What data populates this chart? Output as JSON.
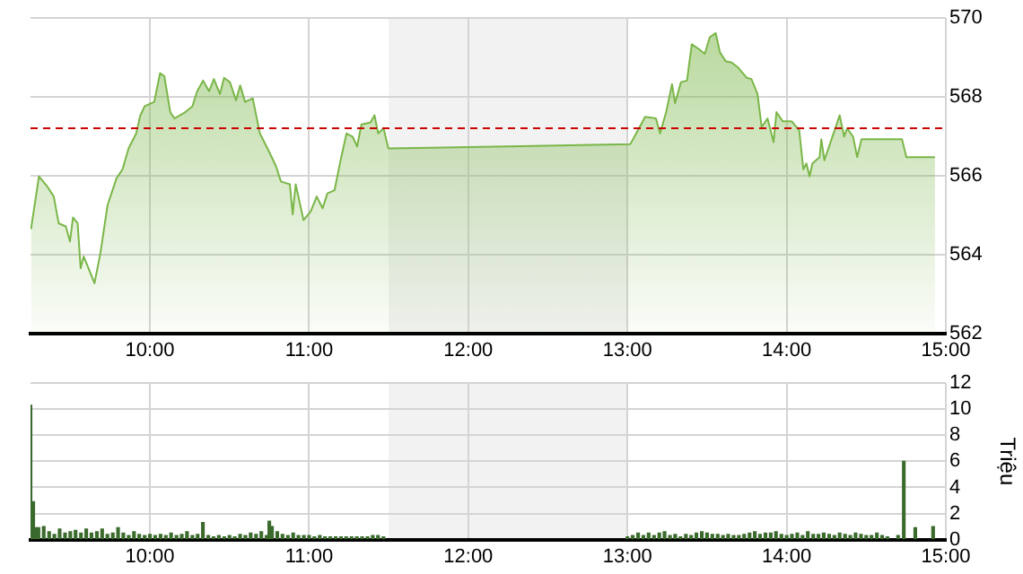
{
  "chart_data": [
    {
      "type": "area",
      "series": [
        {
          "color": "#7ab648",
          "x": [
            9.253,
            9.303,
            9.359,
            9.396,
            9.427,
            9.472,
            9.498,
            9.517,
            9.546,
            9.565,
            9.584,
            9.621,
            9.652,
            9.689,
            9.734,
            9.79,
            9.828,
            9.866,
            9.914,
            9.94,
            9.967,
            10.027,
            10.064,
            10.091,
            10.128,
            10.154,
            10.222,
            10.267,
            10.297,
            10.334,
            10.372,
            10.402,
            10.44,
            10.466,
            10.503,
            10.541,
            10.567,
            10.598,
            10.646,
            10.691,
            10.747,
            10.792,
            10.823,
            10.879,
            10.897,
            10.916,
            10.965,
            11.01,
            11.048,
            11.085,
            11.115,
            11.16,
            11.198,
            11.235,
            11.273,
            11.302,
            11.329,
            11.386,
            11.411,
            11.434,
            11.468,
            11.498,
            12.25,
            13.018,
            13.055,
            13.111,
            13.179,
            13.205,
            13.243,
            13.28,
            13.299,
            13.336,
            13.374,
            13.404,
            13.449,
            13.486,
            13.517,
            13.554,
            13.581,
            13.618,
            13.655,
            13.693,
            13.75,
            13.779,
            13.817,
            13.843,
            13.88,
            13.918,
            13.936,
            13.975,
            14.031,
            14.079,
            14.105,
            14.124,
            14.144,
            14.162,
            14.207,
            14.218,
            14.237,
            14.282,
            14.333,
            14.361,
            14.38,
            14.417,
            14.443,
            14.47,
            14.725,
            14.752,
            14.932
          ],
          "values": [
            564.64,
            565.98,
            565.7,
            565.47,
            564.79,
            564.71,
            564.33,
            564.94,
            564.79,
            563.65,
            563.95,
            563.58,
            563.27,
            564.03,
            565.25,
            565.93,
            566.16,
            566.69,
            567.07,
            567.53,
            567.76,
            567.87,
            568.6,
            568.52,
            567.61,
            567.45,
            567.61,
            567.76,
            568.14,
            568.41,
            568.14,
            568.45,
            568.07,
            568.48,
            568.37,
            567.91,
            568.29,
            567.87,
            567.96,
            567.07,
            566.62,
            566.24,
            565.85,
            565.78,
            565.02,
            565.78,
            564.87,
            565.09,
            565.47,
            565.17,
            565.55,
            565.63,
            566.39,
            567.07,
            566.99,
            566.74,
            567.3,
            567.35,
            567.53,
            567.07,
            567.2,
            566.69,
            566.74,
            566.8,
            567.07,
            567.49,
            567.45,
            567.07,
            567.61,
            568.32,
            567.84,
            568.37,
            568.41,
            569.33,
            569.21,
            569.09,
            569.51,
            569.62,
            569.13,
            568.9,
            568.87,
            568.75,
            568.48,
            568.45,
            568.07,
            567.23,
            567.45,
            566.85,
            567.61,
            567.38,
            567.38,
            567.15,
            566.16,
            566.31,
            565.98,
            566.31,
            566.47,
            566.92,
            566.39,
            566.92,
            567.53,
            566.99,
            567.2,
            566.99,
            566.47,
            566.92,
            566.92,
            566.47,
            566.47
          ]
        }
      ],
      "xlim": [
        9.25,
        15
      ],
      "xticks": [
        {
          "value": 10,
          "label": "10:00"
        },
        {
          "value": 11,
          "label": "11:00"
        },
        {
          "value": 12,
          "label": "12:00"
        },
        {
          "value": 13,
          "label": "13:00"
        },
        {
          "value": 14,
          "label": "14:00"
        },
        {
          "value": 15,
          "label": "15:00"
        }
      ],
      "ylim": [
        562,
        570
      ],
      "yticks": [
        562,
        564,
        566,
        568,
        570
      ],
      "grid": true,
      "ref_lines": [
        {
          "axis": "y",
          "value": 567.2,
          "color": "#cc0000",
          "line_style": "dashed"
        }
      ],
      "bands": [
        {
          "axis": "x",
          "from": 11.5,
          "to": 13,
          "color": "#f2f2f2"
        }
      ]
    },
    {
      "type": "bar",
      "color": "#3b6b2c",
      "ylabel": "Triệu",
      "x": [
        9.25,
        9.267,
        9.283,
        9.3,
        9.333,
        9.367,
        9.4,
        9.433,
        9.467,
        9.5,
        9.533,
        9.567,
        9.6,
        9.633,
        9.667,
        9.7,
        9.733,
        9.767,
        9.8,
        9.833,
        9.867,
        9.9,
        9.933,
        9.967,
        10.0,
        10.033,
        10.067,
        10.1,
        10.133,
        10.167,
        10.2,
        10.233,
        10.267,
        10.3,
        10.333,
        10.367,
        10.4,
        10.433,
        10.467,
        10.5,
        10.533,
        10.567,
        10.6,
        10.633,
        10.667,
        10.7,
        10.733,
        10.75,
        10.767,
        10.8,
        10.833,
        10.867,
        10.9,
        10.933,
        10.967,
        11.0,
        11.033,
        11.067,
        11.1,
        11.133,
        11.167,
        11.2,
        11.233,
        11.267,
        11.3,
        11.333,
        11.367,
        11.4,
        11.433,
        11.467,
        13.0,
        13.033,
        13.067,
        13.1,
        13.133,
        13.167,
        13.2,
        13.233,
        13.267,
        13.3,
        13.333,
        13.367,
        13.4,
        13.433,
        13.467,
        13.5,
        13.533,
        13.567,
        13.6,
        13.633,
        13.667,
        13.7,
        13.733,
        13.767,
        13.8,
        13.833,
        13.867,
        13.9,
        13.933,
        13.967,
        14.0,
        14.033,
        14.067,
        14.1,
        14.133,
        14.167,
        14.2,
        14.233,
        14.267,
        14.3,
        14.333,
        14.367,
        14.4,
        14.433,
        14.467,
        14.5,
        14.533,
        14.567,
        14.6,
        14.633,
        14.7,
        14.736,
        14.808,
        14.92
      ],
      "values": [
        10.3,
        2.9,
        0.9,
        0.9,
        1.0,
        0.6,
        0.4,
        0.8,
        0.5,
        0.6,
        0.7,
        0.5,
        0.8,
        0.5,
        0.6,
        0.8,
        0.4,
        0.5,
        0.9,
        0.5,
        0.3,
        0.6,
        0.4,
        0.3,
        0.4,
        0.3,
        0.4,
        0.3,
        0.5,
        0.3,
        0.4,
        0.6,
        0.3,
        0.4,
        1.3,
        0.3,
        0.2,
        0.3,
        0.2,
        0.3,
        0.2,
        0.4,
        0.3,
        0.5,
        0.4,
        0.6,
        0.3,
        1.4,
        1.0,
        0.6,
        0.4,
        0.3,
        0.5,
        0.3,
        0.3,
        0.3,
        0.2,
        0.3,
        0.2,
        0.2,
        0.2,
        0.2,
        0.2,
        0.2,
        0.2,
        0.2,
        0.2,
        0.3,
        0.3,
        0.2,
        0.2,
        0.3,
        0.5,
        0.3,
        0.5,
        0.3,
        0.5,
        0.6,
        0.3,
        0.4,
        0.2,
        0.4,
        0.3,
        0.5,
        0.6,
        0.5,
        0.4,
        0.4,
        0.3,
        0.4,
        0.3,
        0.3,
        0.4,
        0.5,
        0.6,
        0.4,
        0.5,
        0.5,
        0.6,
        0.4,
        0.3,
        0.4,
        0.5,
        0.3,
        0.6,
        0.4,
        0.4,
        0.5,
        0.4,
        0.3,
        0.5,
        0.4,
        0.3,
        0.5,
        0.4,
        0.3,
        0.3,
        0.5,
        0.3,
        0.2,
        0.3,
        6,
        0.9,
        1.0
      ],
      "xlim": [
        9.25,
        15
      ],
      "xticks": [
        {
          "value": 10,
          "label": "10:00"
        },
        {
          "value": 11,
          "label": "11:00"
        },
        {
          "value": 12,
          "label": "12:00"
        },
        {
          "value": 13,
          "label": "13:00"
        },
        {
          "value": 14,
          "label": "14:00"
        },
        {
          "value": 15,
          "label": "15:00"
        }
      ],
      "ylim": [
        0,
        12
      ],
      "yticks": [
        0,
        2,
        4,
        6,
        8,
        10,
        12
      ],
      "grid": true,
      "bands": [
        {
          "axis": "x",
          "from": 11.5,
          "to": 13,
          "color": "#f2f2f2"
        }
      ]
    }
  ]
}
